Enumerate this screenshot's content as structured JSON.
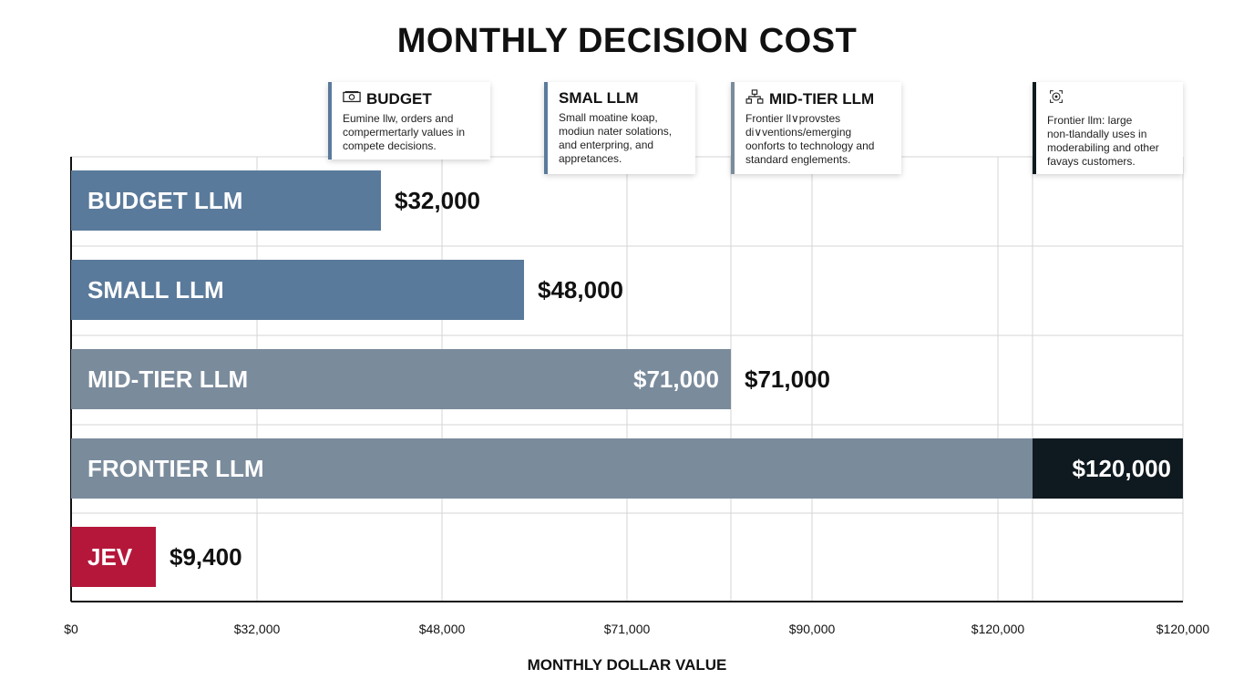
{
  "title": "MONTHLY DECISION COST",
  "x_axis_label": "MONTHLY DOLLAR VALUE",
  "cards": [
    {
      "title": "BUDGET",
      "icon": "money-icon",
      "accent": "#5a7a9b",
      "text": [
        "Eumine llw, orders and",
        "compermertarly values in",
        "compete decisions."
      ]
    },
    {
      "title": "SMAL LLM",
      "icon": "",
      "accent": "#5a7a9b",
      "text": [
        "Small moatine koap,",
        "modiun nater solations,",
        "and enterpring, and",
        "appretances."
      ]
    },
    {
      "title": "MID-TIER LLM",
      "icon": "hierarchy-icon",
      "accent": "#7a8b9c",
      "text": [
        "Frontier ll∨provstes",
        "di∨ventions/emerging",
        "oonforts to technology and",
        "standard englements."
      ]
    },
    {
      "title": "",
      "icon": "target-icon",
      "accent": "#0f1a20",
      "text": [
        "Frontier llm: large",
        "non-tlandally uses in",
        "moderabiling and other",
        "favays customers."
      ]
    }
  ],
  "chart_data": {
    "type": "bar",
    "orientation": "horizontal",
    "title": "MONTHLY DECISION COST",
    "xlabel": "MONTHLY DOLLAR VALUE",
    "ylabel": "",
    "grid": true,
    "x_ticks": [
      "$0",
      "$32,000",
      "$48,000",
      "$71,000",
      "$90,000",
      "$120,000",
      "$120,000"
    ],
    "categories": [
      "BUDGET LLM",
      "SMALL LLM",
      "MID-TIER LLM",
      "FRONTIER LLM",
      "JEV"
    ],
    "values": [
      32000,
      48000,
      71000,
      120000,
      9400
    ],
    "value_labels": [
      "$32,000",
      "$48,000",
      "$71,000",
      "$120,000",
      "$9,400"
    ],
    "inner_value_labels": [
      "",
      "",
      "$71,000",
      "$120,000",
      ""
    ],
    "colors": [
      "#5a7a9b",
      "#5a7a9b",
      "#7a8b9c",
      "#7a8b9c",
      "#b5173a"
    ],
    "highlight_color": "#0f1a20"
  }
}
